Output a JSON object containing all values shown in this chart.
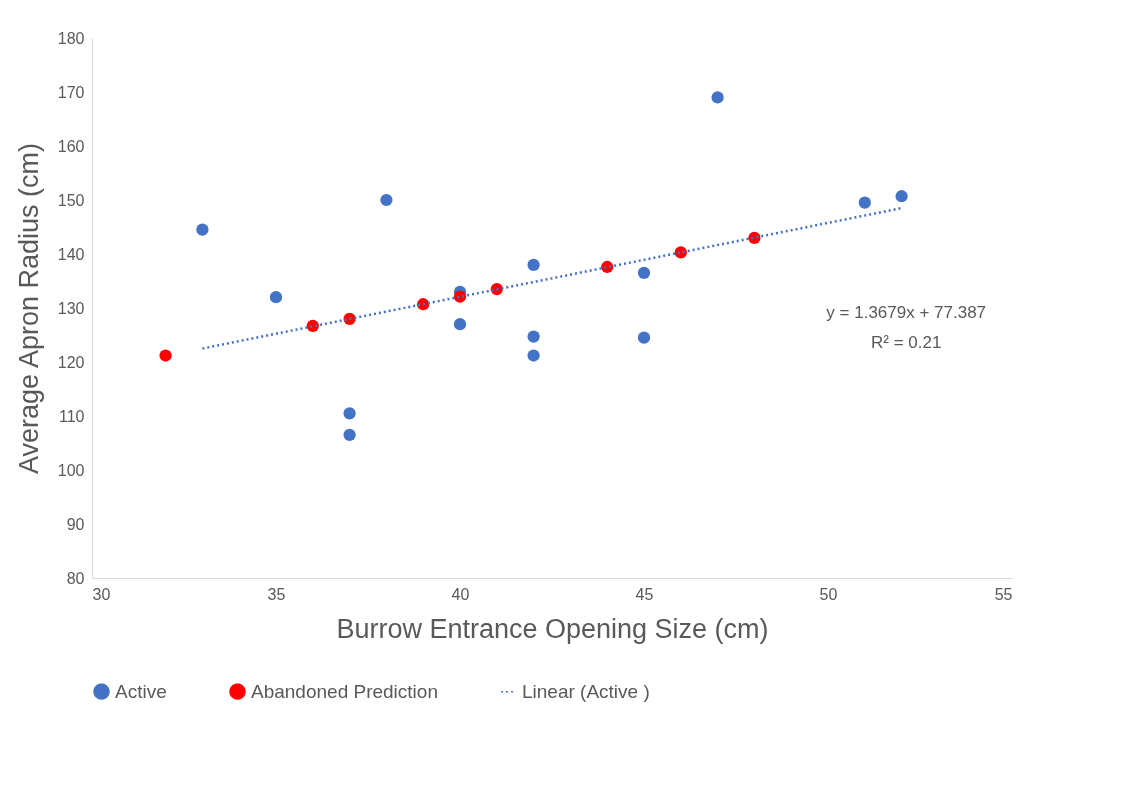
{
  "chart_data": {
    "type": "scatter",
    "xlabel": "Burrow Entrance Opening Size (cm)",
    "ylabel": "Average Apron Radius (cm)",
    "xlim": [
      30,
      55
    ],
    "xticks": [
      30,
      35,
      40,
      45,
      50,
      55
    ],
    "ylim": [
      80,
      180
    ],
    "yticks": [
      80,
      90,
      100,
      110,
      120,
      130,
      140,
      150,
      160,
      170,
      180
    ],
    "grid": false,
    "legend": "bottom",
    "marker": "circle",
    "series": [
      {
        "name": "Active",
        "color": "#4472c4",
        "x": [
          33,
          35,
          37,
          37,
          38,
          40,
          40,
          42,
          42,
          42,
          45,
          45,
          47,
          51,
          52
        ],
        "values": [
          144.5,
          132,
          110.5,
          106.5,
          150,
          133,
          127,
          138,
          124.7,
          121.2,
          136.5,
          124.5,
          169,
          149.5,
          150.7
        ]
      },
      {
        "name": "Abandoned Prediction",
        "color": "#ff0000",
        "x": [
          32,
          36,
          37,
          39,
          40,
          41,
          44,
          46,
          48
        ],
        "values": [
          121.2,
          126.7,
          128,
          130.7,
          132.1,
          133.5,
          137.6,
          140.3,
          143
        ]
      },
      {
        "name": "Linear (Active )",
        "color": "#4472c4",
        "type": "line",
        "line_style": "dotted",
        "marker": "none",
        "x": [
          33,
          52
        ],
        "values": [
          122.5,
          148.5
        ]
      }
    ],
    "annotations": [
      "y = 1.3679x + 77.387",
      "R² = 0.21"
    ]
  }
}
